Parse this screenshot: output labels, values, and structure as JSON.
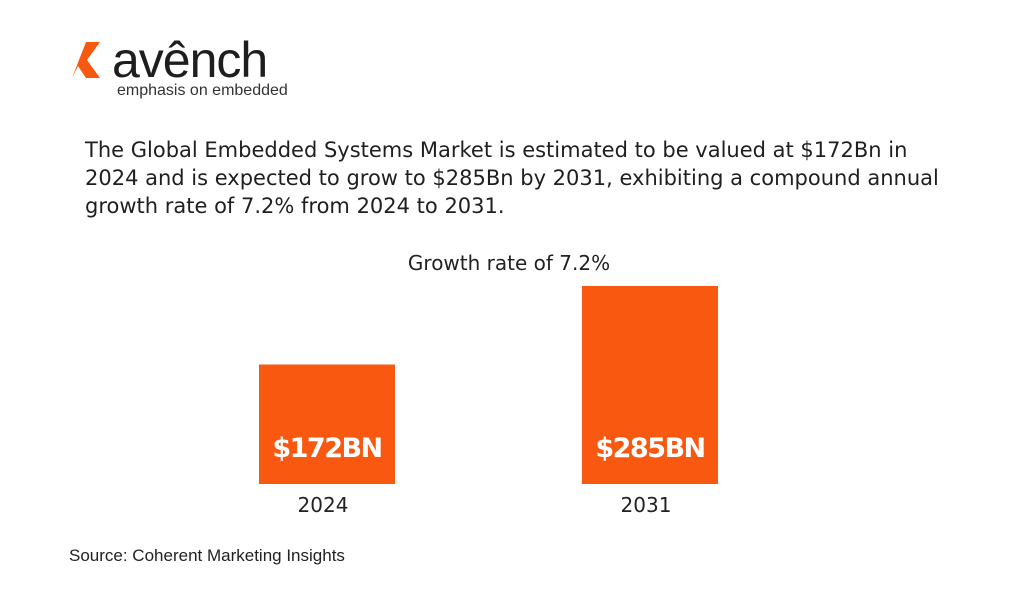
{
  "brand": {
    "wordmark": "avênch",
    "tagline": "emphasis on embedded",
    "accent_color": "#f95810",
    "logo_icon": "k-mark-icon"
  },
  "headline": "The Global Embedded Systems Market is estimated to be valued at $172Bn in 2024 and is expected to grow to $285Bn by 2031, exhibiting a compound annual growth rate of 7.2% from 2024 to 2031.",
  "source": "Source: Coherent Marketing Insights",
  "chart_data": {
    "type": "bar",
    "title": "Growth rate of 7.2%",
    "categories": [
      "2024",
      "2031"
    ],
    "values": [
      172,
      285
    ],
    "data_labels": [
      "$172BN",
      "$285BN"
    ],
    "units": "$Bn",
    "xlabel": "",
    "ylabel": "",
    "ylim": [
      0,
      285
    ],
    "grid": false,
    "legend": "none",
    "bar_color": "#f95810",
    "label_color": "#ffffff"
  }
}
